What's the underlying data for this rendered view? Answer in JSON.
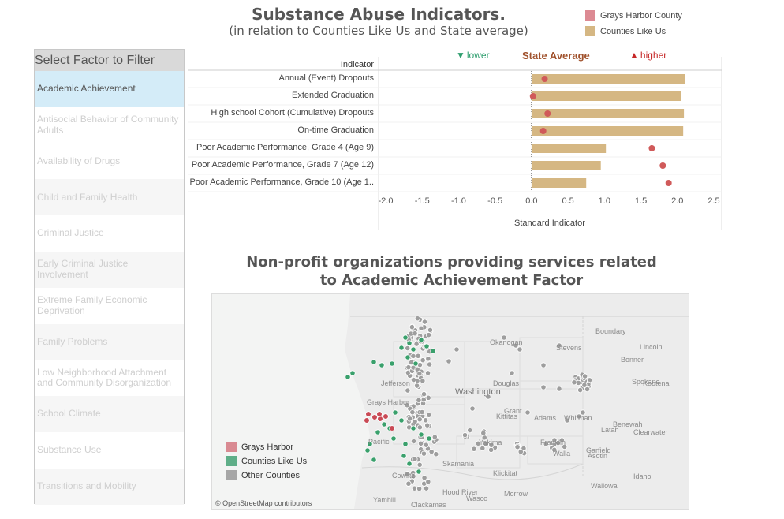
{
  "header": {
    "title": "Substance Abuse Indicators.",
    "subtitle": "(in relation to Counties Like Us and State average)"
  },
  "legend": [
    {
      "label": "Grays Harbor County",
      "color": "#dc8a93"
    },
    {
      "label": "Counties Like Us",
      "color": "#d5b783"
    }
  ],
  "filter": {
    "title": "Select Factor to Filter",
    "items": [
      {
        "label": "Academic Achievement",
        "selected": true
      },
      {
        "label": "Antisocial Behavior of Community Adults"
      },
      {
        "label": "Availability of Drugs"
      },
      {
        "label": "Child and Family Health"
      },
      {
        "label": "Criminal Justice"
      },
      {
        "label": "Early Criminal Justice Involvement"
      },
      {
        "label": "Extreme Family Economic Deprivation"
      },
      {
        "label": "Family Problems"
      },
      {
        "label": "Low Neighborhood Attachment and Community Disorganization"
      },
      {
        "label": "School Climate"
      },
      {
        "label": "Substance Use"
      },
      {
        "label": "Transitions and Mobility"
      }
    ]
  },
  "chart": {
    "indicator_header": "Indicator",
    "lower_label": "lower",
    "state_label": "State Average",
    "higher_label": "higher",
    "lower_color": "#2e9e6e",
    "higher_color": "#c62828",
    "state_color": "#a0522d",
    "bar_color": "#d5b783",
    "dot_color": "#d05a5a"
  },
  "chart_data": {
    "type": "bar",
    "orientation": "horizontal",
    "xlabel": "Standard Indicator",
    "ylabel": "Indicator",
    "xlim": [
      -2.0,
      2.5
    ],
    "xticks": [
      "-2.0",
      "-1.5",
      "-1.0",
      "-0.5",
      "0.0",
      "0.5",
      "1.0",
      "1.5",
      "2.0",
      "2.5"
    ],
    "categories": [
      "Annual (Event) Dropouts",
      "Extended Graduation",
      "High school Cohort (Cumulative) Dropouts",
      "On-time Graduation",
      "Poor Academic Performance, Grade 4 (Age 9)",
      "Poor Academic Performance, Grade 7 (Age 12)",
      "Poor Academic Performance, Grade 10 (Age 1.."
    ],
    "series": [
      {
        "name": "Counties Like Us",
        "values": [
          2.1,
          2.05,
          2.09,
          2.08,
          1.02,
          0.95,
          0.75
        ]
      },
      {
        "name": "Grays Harbor County",
        "values": [
          0.18,
          0.02,
          0.22,
          0.16,
          1.65,
          1.8,
          1.88
        ]
      }
    ],
    "reference_line": 0.0
  },
  "map": {
    "title": "Non-profit organizations providing services related to Academic Achievement Factor",
    "legend": [
      {
        "label": "Grays Harbor",
        "color": "#d98a92"
      },
      {
        "label": "Counties Like Us",
        "color": "#5fae88"
      },
      {
        "label": "Other Counties",
        "color": "#a6a6a6"
      }
    ],
    "credit": "© OpenStreetMap contributors",
    "place_labels": [
      "Washington",
      "Okanogan",
      "Stevens",
      "Boundary",
      "Lincoln",
      "Bonner",
      "Jefferson",
      "Douglas",
      "Spokane",
      "Kootenai",
      "Grays Harbor",
      "Pacific",
      "Kittitas",
      "Grant",
      "Adams",
      "Whitman",
      "Latah",
      "Benewah",
      "Clearwater",
      "Yakima",
      "Franklin",
      "Walla",
      "Garfield",
      "Asotin",
      "Cowlitz",
      "Skamania",
      "Klickitat",
      "Wasco",
      "Hood River",
      "Morrow",
      "Wallowa",
      "Idaho",
      "Clackamas",
      "Yamhill"
    ]
  }
}
